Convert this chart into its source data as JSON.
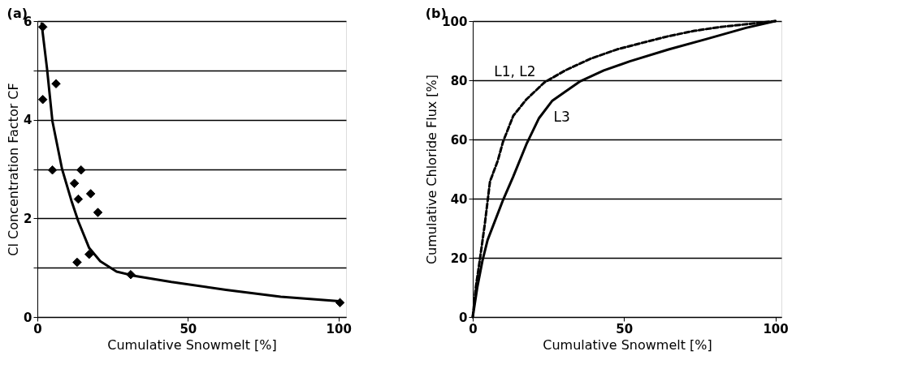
{
  "chart_data": [
    {
      "type": "scatter",
      "title": "(a)",
      "xlabel": "Cumulative Snowmelt [%]",
      "ylabel": "Cl Concentration Factor CF",
      "xlim": [
        0,
        102.5
      ],
      "ylim": [
        0,
        6
      ],
      "xticks": [
        0,
        50,
        100
      ],
      "yticks": [
        0,
        {
          "value": 1,
          "label": null
        },
        2,
        {
          "value": 3,
          "label": null
        },
        4,
        {
          "value": 5,
          "label": null
        },
        6
      ],
      "grid": "y",
      "series": [
        {
          "type": "scatter",
          "marker": "diamond",
          "color": "#000000",
          "x": [
            1.8,
            1.8,
            6.2,
            5.0,
            14.5,
            12.3,
            13.6,
            17.7,
            20.1,
            13.2,
            17.2,
            31.0,
            100.5
          ],
          "values": [
            5.88,
            4.41,
            4.73,
            2.98,
            2.98,
            2.71,
            2.39,
            2.5,
            2.12,
            1.11,
            1.27,
            0.86,
            0.29
          ]
        },
        {
          "type": "line",
          "marker": "none",
          "color": "#000000",
          "x": [
            1.4,
            3.2,
            5.0,
            8.2,
            11.3,
            13.6,
            17.2,
            20.9,
            26.3,
            31.8,
            44.5,
            62.6,
            80.8,
            100.3
          ],
          "values": [
            5.95,
            5.04,
            3.97,
            3.0,
            2.36,
            1.94,
            1.4,
            1.13,
            0.92,
            0.84,
            0.71,
            0.55,
            0.41,
            0.32
          ]
        }
      ]
    },
    {
      "type": "line",
      "title": "(b)",
      "xlabel": "Cumulative Snowmelt [%]",
      "ylabel": "Cumulative Chloride Flux [%]",
      "xlim": [
        0,
        102
      ],
      "ylim": [
        0,
        100
      ],
      "xticks": [
        0,
        50,
        100
      ],
      "yticks": [
        0,
        20,
        40,
        60,
        80,
        100
      ],
      "grid": "y",
      "series": [
        {
          "name": "L1, L2",
          "color": "#000000",
          "line_style": "dashed",
          "x": [
            0,
            1.0,
            2.3,
            4.0,
            5.7,
            8.3,
            10,
            13.4,
            17.7,
            23.7,
            30.5,
            39,
            47.6,
            56.2,
            64.7,
            73.2,
            81.8,
            100
          ],
          "values": [
            0,
            10,
            19,
            31.5,
            45.8,
            52.9,
            59.2,
            68,
            73.5,
            79.3,
            83.3,
            87.3,
            90.4,
            92.7,
            94.9,
            96.7,
            98,
            100
          ]
        },
        {
          "name": "L3",
          "color": "#000000",
          "line_style": "solid",
          "x": [
            0,
            1.5,
            3.2,
            4.9,
            10,
            13.4,
            17.7,
            21.9,
            26.2,
            30.5,
            35.6,
            43.3,
            51.9,
            64.7,
            77.5,
            90.3,
            100
          ],
          "values": [
            0,
            10,
            19,
            26,
            39.5,
            47.5,
            58.3,
            67.2,
            73,
            76.1,
            79.7,
            83.3,
            86.4,
            90.4,
            94,
            97.7,
            100
          ]
        }
      ]
    }
  ]
}
